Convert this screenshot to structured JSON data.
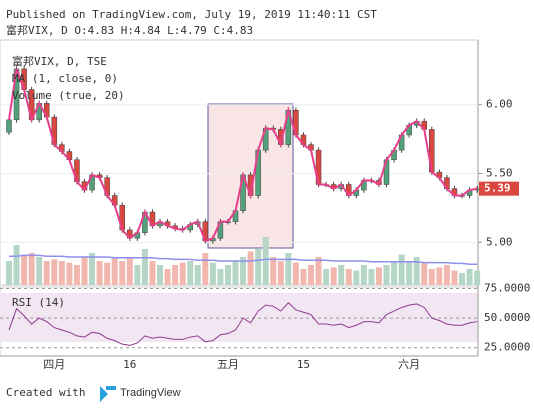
{
  "header": {
    "published": "Published on TradingView.com, July 19, 2019 11:40:11 CST",
    "symbol_line": "富邦VIX, D  O:4.83 H:4.84 L:4.79 C:4.83"
  },
  "chart_data": {
    "type": "candlestick",
    "legend": [
      "富邦VIX, D, TSE",
      "MA (1, close, 0)",
      "Volume (true, 20)"
    ],
    "categories": [
      null,
      null,
      null,
      null,
      null,
      null,
      "四月",
      null,
      null,
      null,
      null,
      null,
      null,
      null,
      null,
      null,
      "16",
      null,
      null,
      null,
      null,
      null,
      null,
      null,
      null,
      null,
      null,
      null,
      null,
      "五月",
      null,
      null,
      null,
      null,
      null,
      null,
      null,
      null,
      null,
      "15",
      null,
      null,
      null,
      null,
      null,
      null,
      null,
      null,
      null,
      null,
      null,
      null,
      null,
      "六月",
      null,
      null,
      null,
      null,
      null,
      null,
      null,
      null,
      null
    ],
    "open": [
      5.8,
      5.89,
      6.26,
      6.11,
      5.89,
      6.01,
      5.91,
      5.71,
      5.66,
      5.6,
      5.44,
      5.38,
      5.49,
      5.47,
      5.34,
      5.27,
      5.09,
      5.03,
      5.07,
      5.22,
      5.12,
      5.15,
      5.12,
      5.1,
      5.09,
      5.13,
      5.15,
      5.01,
      5.03,
      5.15,
      5.15,
      5.23,
      5.49,
      5.34,
      5.67,
      5.83,
      5.82,
      5.71,
      5.96,
      5.78,
      5.71,
      5.67,
      5.42,
      5.42,
      5.39,
      5.42,
      5.34,
      5.38,
      5.45,
      5.45,
      5.42,
      5.6,
      5.67,
      5.78,
      5.85,
      5.88,
      5.82,
      5.51,
      5.47,
      5.39,
      5.34,
      5.34,
      5.38
    ],
    "high": [
      5.91,
      6.28,
      6.28,
      6.13,
      6.03,
      6.03,
      5.93,
      5.73,
      5.68,
      5.62,
      5.46,
      5.51,
      5.51,
      5.49,
      5.36,
      5.29,
      5.11,
      5.09,
      5.24,
      5.24,
      5.17,
      5.17,
      5.14,
      5.12,
      5.15,
      5.17,
      5.17,
      5.05,
      5.17,
      5.17,
      5.25,
      5.51,
      5.51,
      5.69,
      5.85,
      5.85,
      5.84,
      5.98,
      5.98,
      5.8,
      5.73,
      5.69,
      5.44,
      5.44,
      5.44,
      5.44,
      5.4,
      5.47,
      5.47,
      5.47,
      5.62,
      5.69,
      5.8,
      5.87,
      5.9,
      5.9,
      5.84,
      5.53,
      5.49,
      5.41,
      5.36,
      5.4,
      5.41
    ],
    "low": [
      5.78,
      5.87,
      6.09,
      5.87,
      5.87,
      5.89,
      5.69,
      5.64,
      5.58,
      5.42,
      5.36,
      5.36,
      5.45,
      5.32,
      5.25,
      5.07,
      5.01,
      5.01,
      5.05,
      5.1,
      5.1,
      5.1,
      5.08,
      5.07,
      5.07,
      5.11,
      4.99,
      4.99,
      5.01,
      5.13,
      5.13,
      5.21,
      5.32,
      5.32,
      5.65,
      5.8,
      5.69,
      5.69,
      5.76,
      5.69,
      5.65,
      5.4,
      5.4,
      5.37,
      5.37,
      5.32,
      5.32,
      5.36,
      5.43,
      5.4,
      5.4,
      5.58,
      5.65,
      5.76,
      5.83,
      5.8,
      5.49,
      5.45,
      5.37,
      5.32,
      5.32,
      5.32,
      5.36
    ],
    "close": [
      5.89,
      6.26,
      6.11,
      5.89,
      6.01,
      5.91,
      5.71,
      5.66,
      5.6,
      5.44,
      5.38,
      5.49,
      5.47,
      5.34,
      5.27,
      5.09,
      5.03,
      5.07,
      5.22,
      5.12,
      5.15,
      5.12,
      5.1,
      5.09,
      5.13,
      5.15,
      5.01,
      5.03,
      5.15,
      5.15,
      5.23,
      5.49,
      5.34,
      5.67,
      5.83,
      5.82,
      5.71,
      5.96,
      5.78,
      5.71,
      5.67,
      5.42,
      5.42,
      5.39,
      5.42,
      5.34,
      5.38,
      5.45,
      5.45,
      5.42,
      5.6,
      5.67,
      5.78,
      5.85,
      5.88,
      5.82,
      5.51,
      5.47,
      5.39,
      5.34,
      5.34,
      5.38,
      5.39
    ],
    "up_color": "#53a07a",
    "down_color": "#d9473f",
    "ma_color": "#e83e8c",
    "ylim": [
      4.69,
      6.47
    ],
    "yticks": [
      {
        "value": 5,
        "label": "5.00"
      },
      {
        "value": 5.5,
        "label": "5.50"
      },
      {
        "value": 6,
        "label": "6.00"
      }
    ],
    "volume": {
      "values": [
        30,
        50,
        38,
        40,
        35,
        30,
        32,
        30,
        28,
        25,
        35,
        40,
        30,
        28,
        35,
        30,
        35,
        25,
        45,
        30,
        25,
        20,
        25,
        28,
        30,
        25,
        40,
        28,
        20,
        25,
        30,
        35,
        42,
        45,
        60,
        35,
        30,
        40,
        28,
        20,
        25,
        35,
        20,
        22,
        25,
        20,
        18,
        25,
        20,
        22,
        25,
        30,
        38,
        30,
        35,
        28,
        20,
        22,
        25,
        18,
        15,
        20,
        18
      ],
      "ma": [
        36,
        36,
        37,
        37,
        37,
        36,
        36,
        36,
        35,
        35,
        35,
        35,
        35,
        35,
        34,
        34,
        34,
        34,
        34,
        34,
        33,
        33,
        32,
        32,
        32,
        31,
        31,
        31,
        30,
        30,
        30,
        30,
        30,
        31,
        32,
        32,
        32,
        32,
        32,
        31,
        31,
        31,
        31,
        30,
        30,
        30,
        30,
        30,
        29,
        29,
        29,
        29,
        29,
        29,
        29,
        28,
        28,
        28,
        28,
        27,
        27,
        26,
        26
      ],
      "vlim": [
        0,
        100
      ],
      "up_color": "#b5d6c7",
      "down_color": "#f1b7ae",
      "ma_color": "#8f8ff0"
    },
    "rsi": {
      "name": "RSI (14)",
      "values": [
        40,
        58,
        52,
        45,
        50,
        47,
        42,
        40,
        38,
        35,
        34,
        38,
        37,
        33,
        31,
        28,
        27,
        29,
        35,
        33,
        34,
        33,
        32,
        32,
        34,
        35,
        30,
        31,
        36,
        37,
        40,
        50,
        46,
        56,
        61,
        60,
        56,
        63,
        57,
        55,
        53,
        45,
        45,
        44,
        45,
        42,
        44,
        47,
        47,
        46,
        53,
        56,
        59,
        61,
        62,
        59,
        50,
        48,
        45,
        44,
        44,
        46,
        47
      ],
      "ylim": [
        18,
        78
      ],
      "yticks": [
        {
          "value": 75,
          "label": "75.0000"
        },
        {
          "value": 50,
          "label": "50.0000"
        },
        {
          "value": 25,
          "label": "25.0000"
        }
      ],
      "color": "#8e3a8e"
    }
  },
  "footer": {
    "created": "Created with",
    "brand": "TradingView"
  }
}
